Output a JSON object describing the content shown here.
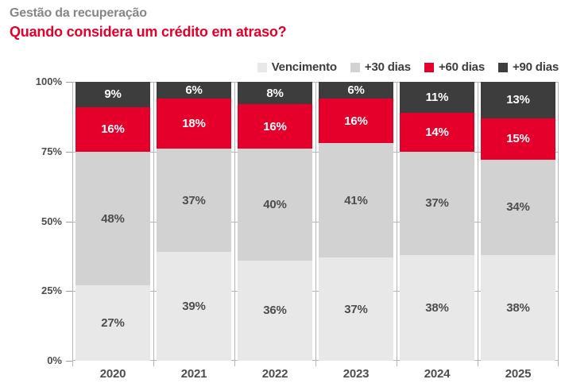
{
  "header": {
    "title": "Gestão da recuperação",
    "subtitle": "Quando considera um crédito em atraso?"
  },
  "colors": {
    "title_gray": "#868686",
    "accent_red": "#e4002b",
    "axis_text": "#4d4d4d",
    "grid_line": "#b5b5b5",
    "background": "#ffffff"
  },
  "chart_data": {
    "type": "bar",
    "stacked": true,
    "title": "Quando considera um crédito em atraso?",
    "xlabel": "",
    "ylabel": "",
    "ylim": [
      0,
      100
    ],
    "grid": true,
    "legend_position": "top-right",
    "categories": [
      "2020",
      "2021",
      "2022",
      "2023",
      "2024",
      "2025"
    ],
    "series": [
      {
        "name": "Vencimento",
        "color": "#e8e8e8",
        "label_color": "#4d4d4d",
        "values": [
          27,
          39,
          36,
          37,
          38,
          38
        ]
      },
      {
        "name": "+30 dias",
        "color": "#d2d2d2",
        "label_color": "#4d4d4d",
        "values": [
          48,
          37,
          40,
          41,
          37,
          34
        ]
      },
      {
        "name": "+60 dias",
        "color": "#e4002b",
        "label_color": "#ffffff",
        "values": [
          16,
          18,
          16,
          16,
          14,
          15
        ]
      },
      {
        "name": "+90 dias",
        "color": "#3d3d3d",
        "label_color": "#ffffff",
        "values": [
          9,
          6,
          8,
          6,
          11,
          13
        ]
      }
    ],
    "y_ticks": [
      "0%",
      "25%",
      "50%",
      "75%",
      "100%"
    ],
    "y_tick_positions": [
      0,
      25,
      50,
      75,
      100
    ]
  }
}
